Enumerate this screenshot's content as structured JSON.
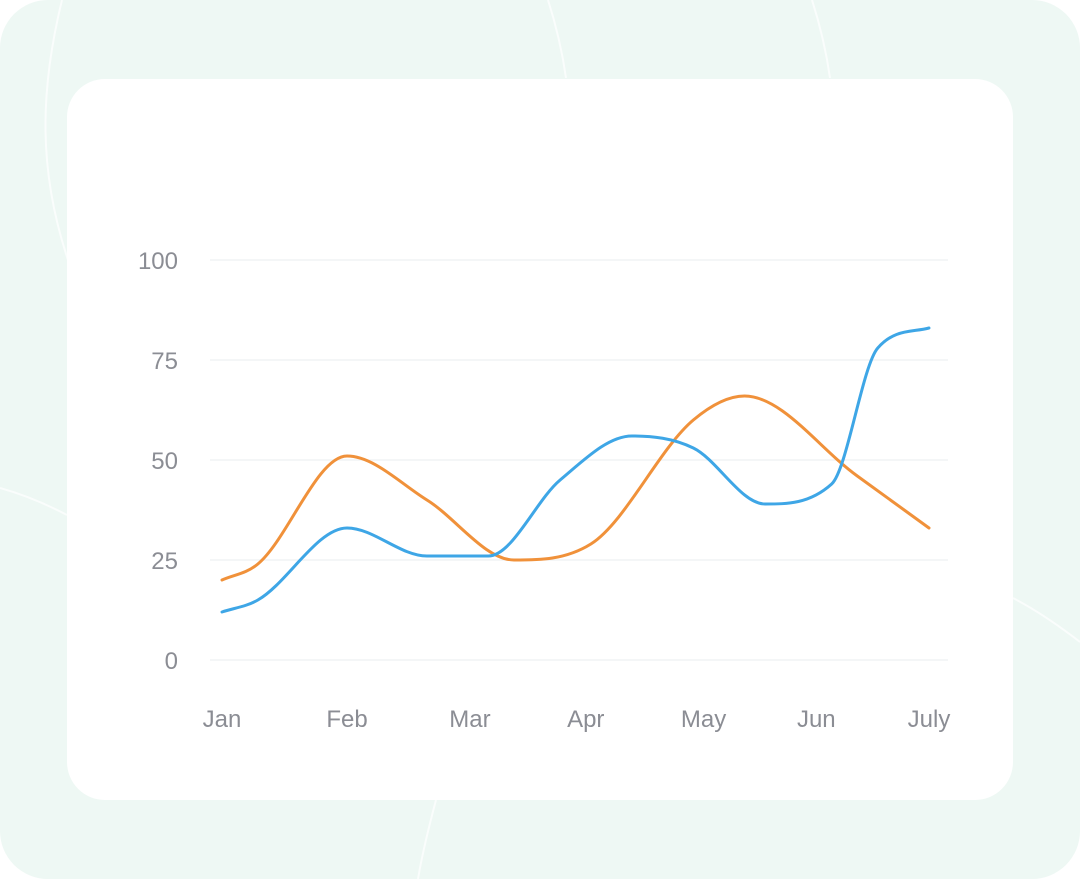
{
  "chart_data": {
    "type": "line",
    "categories": [
      "Jan",
      "Feb",
      "Mar",
      "Apr",
      "May",
      "Jun",
      "July"
    ],
    "x_positions": [
      0,
      1.22,
      2.42,
      3.55,
      4.7,
      5.8,
      6.9
    ],
    "yticks": [
      0,
      25,
      50,
      75,
      100
    ],
    "ylim": [
      0,
      100
    ],
    "grid": true,
    "legend": "none",
    "series": [
      {
        "color": "#f0913a",
        "x": [
          0,
          0.35,
          1.22,
          2.0,
          2.85,
          3.6,
          4.6,
          5.1,
          6.2,
          6.9
        ],
        "values": [
          20,
          24,
          51,
          40,
          25,
          29,
          60,
          66,
          46,
          33
        ]
      },
      {
        "color": "#3ea6e6",
        "x": [
          0,
          0.35,
          1.22,
          2.0,
          2.6,
          3.3,
          4.0,
          4.6,
          5.3,
          5.95,
          6.4,
          6.9
        ],
        "values": [
          12,
          15,
          33,
          26,
          26,
          45,
          56,
          53,
          39,
          44,
          78,
          83
        ]
      }
    ]
  }
}
